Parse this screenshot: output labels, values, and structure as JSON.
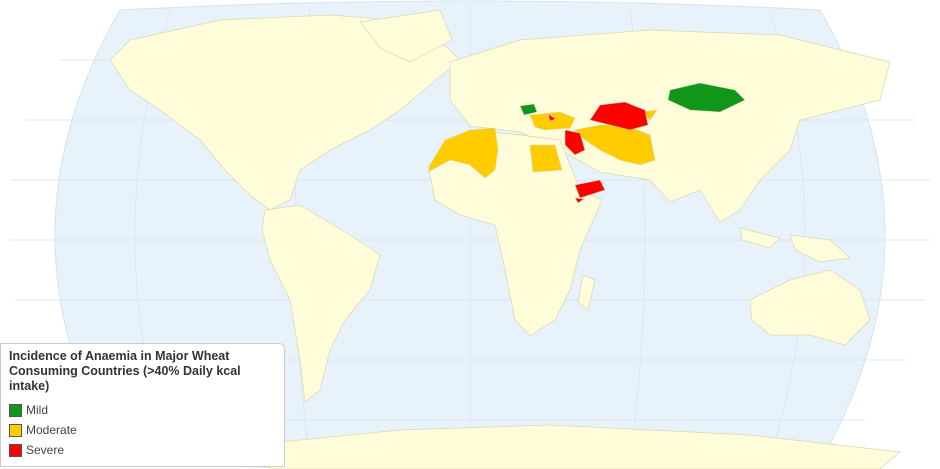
{
  "legend": {
    "title": [
      "Incidence of Anaemia in Major Wheat",
      "Consuming Countries (>40% Daily kcal",
      "intake)"
    ],
    "items": [
      {
        "name": "Mild",
        "color": "#109618"
      },
      {
        "name": "Moderate",
        "color": "#ffcc00"
      },
      {
        "name": "Severe",
        "color": "#ff0000"
      }
    ]
  }
}
